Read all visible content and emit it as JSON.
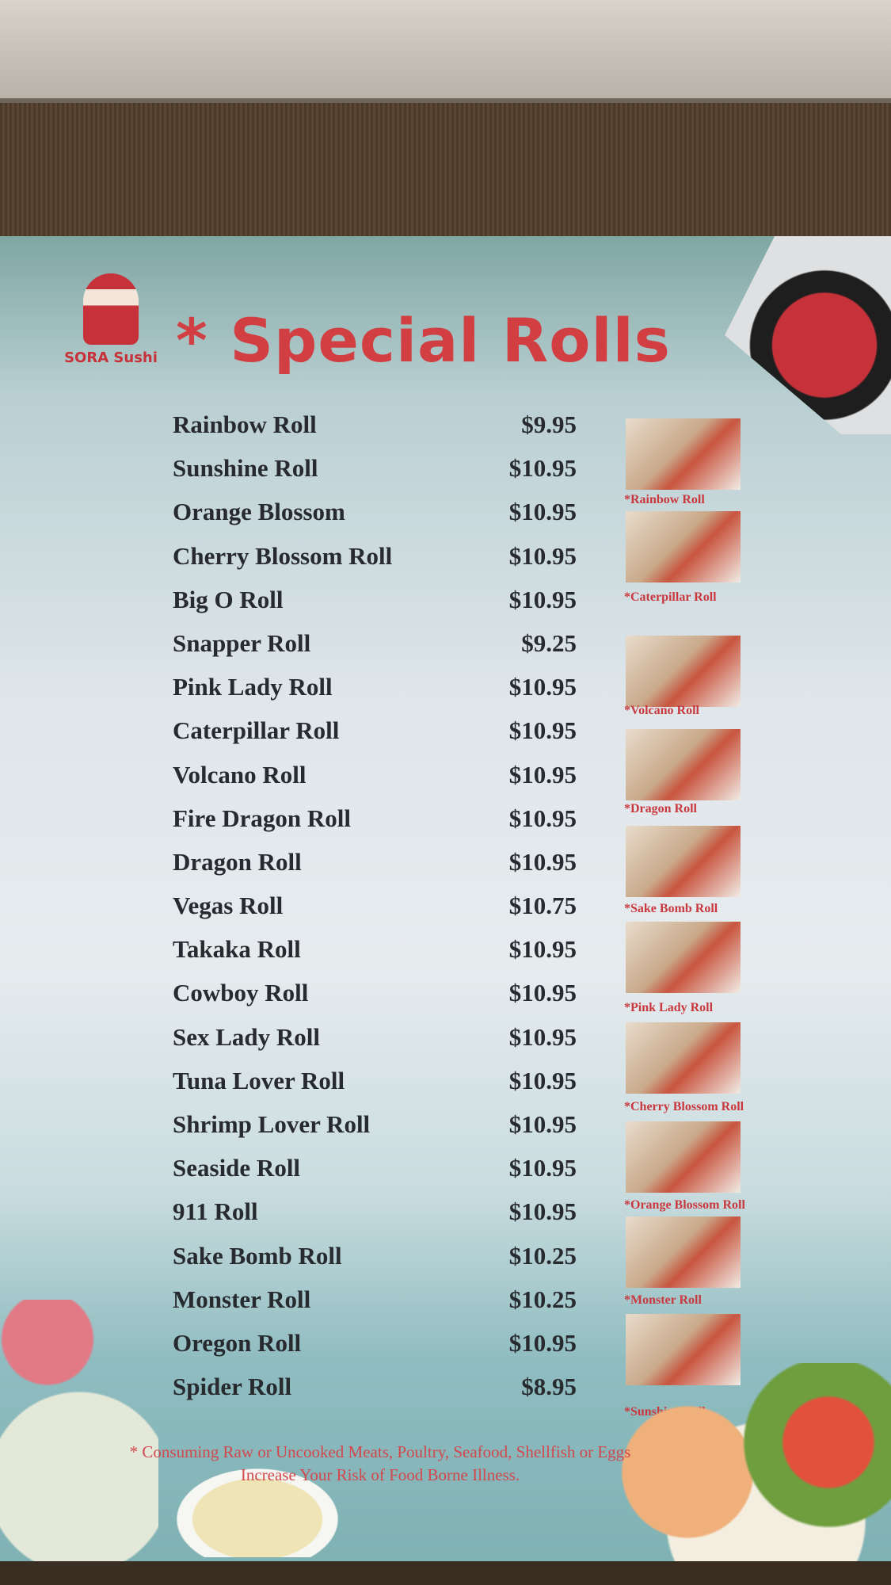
{
  "brand": {
    "logo_text": "SORA Sushi"
  },
  "title": "* Special Rolls",
  "menu": [
    {
      "name": "Rainbow Roll",
      "price": "$9.95"
    },
    {
      "name": "Sunshine Roll",
      "price": "$10.95"
    },
    {
      "name": "Orange Blossom",
      "price": "$10.95"
    },
    {
      "name": "Cherry Blossom Roll",
      "price": "$10.95"
    },
    {
      "name": "Big O Roll",
      "price": "$10.95"
    },
    {
      "name": "Snapper Roll",
      "price": "$9.25"
    },
    {
      "name": "Pink Lady Roll",
      "price": "$10.95"
    },
    {
      "name": "Caterpillar Roll",
      "price": "$10.95"
    },
    {
      "name": "Volcano Roll",
      "price": "$10.95"
    },
    {
      "name": "Fire Dragon Roll",
      "price": "$10.95"
    },
    {
      "name": "Dragon Roll",
      "price": "$10.95"
    },
    {
      "name": "Vegas Roll",
      "price": "$10.75"
    },
    {
      "name": "Takaka Roll",
      "price": "$10.95"
    },
    {
      "name": "Cowboy Roll",
      "price": "$10.95"
    },
    {
      "name": "Sex Lady Roll",
      "price": "$10.95"
    },
    {
      "name": "Tuna Lover Roll",
      "price": "$10.95"
    },
    {
      "name": "Shrimp Lover Roll",
      "price": "$10.95"
    },
    {
      "name": "Seaside Roll",
      "price": "$10.95"
    },
    {
      "name": "911 Roll",
      "price": "$10.95"
    },
    {
      "name": "Sake Bomb Roll",
      "price": "$10.25"
    },
    {
      "name": "Monster Roll",
      "price": "$10.25"
    },
    {
      "name": "Oregon Roll",
      "price": "$10.95"
    },
    {
      "name": "Spider Roll",
      "price": "$8.95"
    }
  ],
  "photos": [
    "*Rainbow Roll",
    "*Caterpillar Roll",
    "*Volcano Roll",
    "*Dragon Roll",
    "*Sake Bomb Roll",
    "*Pink Lady Roll",
    "*Cherry  Blossom Roll",
    "*Orange Blossom Roll",
    "*Monster Roll",
    "*Sunshine Roll"
  ],
  "disclaimer": "* Consuming Raw or Uncooked Meats, Poultry, Seafood, Shellfish or Eggs Increase Your Risk of Food Borne Illness.",
  "colors": {
    "accent": "#d23f43",
    "text": "#272a2e"
  }
}
